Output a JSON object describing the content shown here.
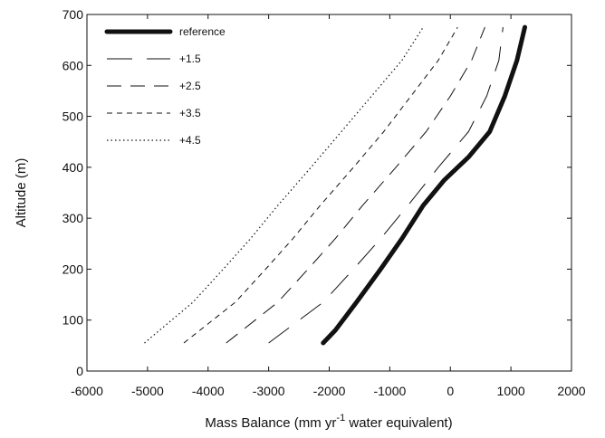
{
  "chart_data": {
    "type": "line",
    "xlabel_prefix": "Mass Balance (mm yr",
    "xlabel_sup": "-1",
    "xlabel_suffix": " water equivalent)",
    "ylabel": "Altitude (m)",
    "xlim": [
      -6000,
      2000
    ],
    "ylim": [
      0,
      700
    ],
    "xticks": [
      -6000,
      -5000,
      -4000,
      -3000,
      -2000,
      -1000,
      0,
      1000,
      2000
    ],
    "yticks": [
      0,
      100,
      200,
      300,
      400,
      500,
      600,
      700
    ],
    "grid": false,
    "legend_position": "top-left",
    "series": [
      {
        "name": "reference",
        "style": "thick-solid",
        "x": [
          -2100,
          -1900,
          -1550,
          -1150,
          -800,
          -450,
          -100,
          300,
          650,
          900,
          1100,
          1230
        ],
        "y": [
          55,
          80,
          135,
          200,
          260,
          325,
          375,
          420,
          470,
          540,
          610,
          675
        ]
      },
      {
        "name": "+1.5",
        "style": "long-dash",
        "x": [
          -3000,
          -2100,
          -1600,
          -1150,
          -700,
          -200,
          300,
          600,
          800,
          870
        ],
        "y": [
          55,
          135,
          200,
          260,
          325,
          400,
          470,
          540,
          610,
          675
        ]
      },
      {
        "name": "+2.5",
        "style": "medium-dash",
        "x": [
          -3700,
          -2850,
          -2350,
          -1900,
          -1450,
          -900,
          -400,
          0,
          350,
          570
        ],
        "y": [
          55,
          135,
          200,
          260,
          325,
          400,
          470,
          540,
          610,
          675
        ]
      },
      {
        "name": "+3.5",
        "style": "short-dash",
        "x": [
          -4400,
          -3550,
          -3050,
          -2600,
          -2150,
          -1600,
          -1100,
          -650,
          -200,
          120
        ],
        "y": [
          55,
          135,
          200,
          260,
          325,
          400,
          470,
          540,
          610,
          675
        ]
      },
      {
        "name": "+4.5",
        "style": "dotted",
        "x": [
          -5050,
          -4250,
          -3750,
          -3300,
          -2850,
          -2300,
          -1800,
          -1300,
          -800,
          -450
        ],
        "y": [
          55,
          135,
          200,
          260,
          325,
          400,
          470,
          540,
          610,
          675
        ]
      }
    ]
  }
}
